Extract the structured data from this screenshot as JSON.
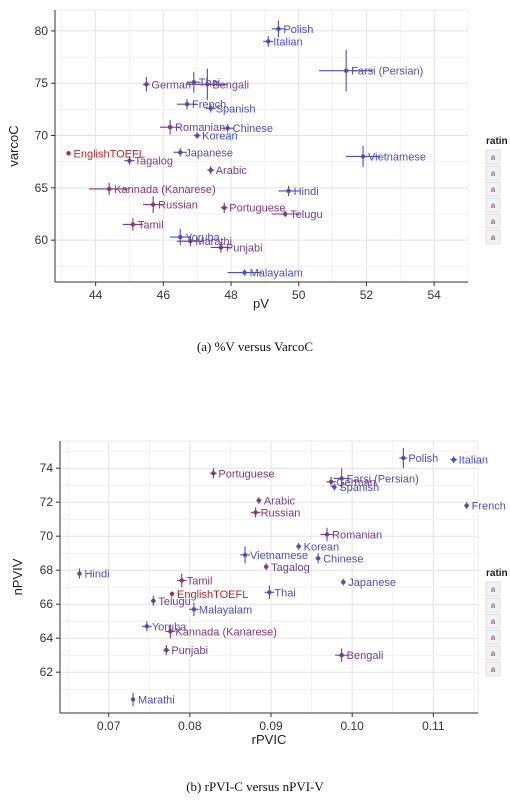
{
  "captions": [
    "(a) %V versus VarcoC",
    "(b) rPVI-C versus nPVI-V"
  ],
  "legend": {
    "title": "ratin",
    "glyph": "a",
    "colors": [
      "#4a4ec9",
      "#5b4aae",
      "#6f3f93",
      "#873878",
      "#9c2f5c",
      "#b52a2a"
    ]
  },
  "chart_data": [
    {
      "type": "scatter",
      "xlabel": "pV",
      "ylabel": "varcoC",
      "xlim": [
        42.8,
        55
      ],
      "ylim": [
        56,
        82
      ],
      "xticks": [
        44,
        46,
        48,
        50,
        52,
        54
      ],
      "yticks": [
        60,
        65,
        70,
        75,
        80
      ],
      "grid": true,
      "points": [
        {
          "label": "Polish",
          "x": 49.4,
          "y": 80.2,
          "ex": 0.2,
          "ey": 0.8,
          "c": 0
        },
        {
          "label": "Italian",
          "x": 49.1,
          "y": 79.0,
          "ex": 0.15,
          "ey": 0.5,
          "c": 0
        },
        {
          "label": "Farsi (Persian)",
          "x": 51.4,
          "y": 76.2,
          "ex": 0.8,
          "ey": 2.0,
          "c": 1
        },
        {
          "label": "German",
          "x": 45.5,
          "y": 74.9,
          "ex": 0.1,
          "ey": 0.7,
          "c": 2
        },
        {
          "label": "Thai",
          "x": 46.9,
          "y": 75.1,
          "ex": 0.2,
          "ey": 1.0,
          "c": 1
        },
        {
          "label": "Bengali",
          "x": 47.3,
          "y": 74.9,
          "ex": 0.6,
          "ey": 1.5,
          "c": 2
        },
        {
          "label": "French",
          "x": 46.7,
          "y": 73.0,
          "ex": 0.3,
          "ey": 0.5,
          "c": 1
        },
        {
          "label": "Spanish",
          "x": 47.4,
          "y": 72.6,
          "ex": 0.15,
          "ey": 0.4,
          "c": 0
        },
        {
          "label": "Romanian",
          "x": 46.2,
          "y": 70.8,
          "ex": 0.3,
          "ey": 0.7,
          "c": 2
        },
        {
          "label": "Chinese",
          "x": 47.9,
          "y": 70.7,
          "ex": 0.2,
          "ey": 0.4,
          "c": 1
        },
        {
          "label": "Korean",
          "x": 47.0,
          "y": 70.0,
          "ex": 0.1,
          "ey": 0.3,
          "c": 0
        },
        {
          "label": "EnglishTOEFL",
          "x": 43.2,
          "y": 68.3,
          "ex": 0.05,
          "ey": 0.2,
          "c": 5
        },
        {
          "label": "Tagalog",
          "x": 45.0,
          "y": 67.6,
          "ex": 0.15,
          "ey": 0.4,
          "c": 2
        },
        {
          "label": "Japanese",
          "x": 46.5,
          "y": 68.4,
          "ex": 0.2,
          "ey": 0.4,
          "c": 1
        },
        {
          "label": "Vietnamese",
          "x": 51.9,
          "y": 68.0,
          "ex": 0.5,
          "ey": 1.0,
          "c": 0
        },
        {
          "label": "Arabic",
          "x": 47.4,
          "y": 66.7,
          "ex": 0.1,
          "ey": 0.4,
          "c": 2
        },
        {
          "label": "Kannada (Kanarese)",
          "x": 44.4,
          "y": 64.9,
          "ex": 0.6,
          "ey": 0.6,
          "c": 3
        },
        {
          "label": "Hindi",
          "x": 49.7,
          "y": 64.7,
          "ex": 0.3,
          "ey": 0.5,
          "c": 1
        },
        {
          "label": "Russian",
          "x": 45.7,
          "y": 63.4,
          "ex": 0.3,
          "ey": 0.8,
          "c": 3
        },
        {
          "label": "Portuguese",
          "x": 47.8,
          "y": 63.1,
          "ex": 0.1,
          "ey": 0.5,
          "c": 3
        },
        {
          "label": "Telugu",
          "x": 49.6,
          "y": 62.5,
          "ex": 0.4,
          "ey": 0.3,
          "c": 2
        },
        {
          "label": "Tamil",
          "x": 45.1,
          "y": 61.5,
          "ex": 0.3,
          "ey": 0.6,
          "c": 3
        },
        {
          "label": "Yoruba",
          "x": 46.5,
          "y": 60.3,
          "ex": 0.3,
          "ey": 0.8,
          "c": 0
        },
        {
          "label": "Marathi",
          "x": 46.8,
          "y": 59.9,
          "ex": 0.4,
          "ey": 0.5,
          "c": 2
        },
        {
          "label": "Punjabi",
          "x": 47.7,
          "y": 59.3,
          "ex": 0.3,
          "ey": 0.5,
          "c": 2
        },
        {
          "label": "Malayalam",
          "x": 48.4,
          "y": 56.9,
          "ex": 0.5,
          "ey": 0.3,
          "c": 0
        }
      ]
    },
    {
      "type": "scatter",
      "xlabel": "rPVIC",
      "ylabel": "nPVIV",
      "xlim": [
        0.064,
        0.1155
      ],
      "ylim": [
        59.6,
        75.6
      ],
      "xticks": [
        0.07,
        0.08,
        0.09,
        0.1,
        0.11
      ],
      "yticks": [
        62,
        64,
        66,
        68,
        70,
        72,
        74
      ],
      "grid": true,
      "points": [
        {
          "label": "Polish",
          "x": 0.1063,
          "y": 74.6,
          "ex": 0.0005,
          "ey": 0.6,
          "c": 0
        },
        {
          "label": "Italian",
          "x": 0.1125,
          "y": 74.5,
          "ex": 0.0004,
          "ey": 0.2,
          "c": 0
        },
        {
          "label": "Portuguese",
          "x": 0.0829,
          "y": 73.7,
          "ex": 0.0004,
          "ey": 0.3,
          "c": 3
        },
        {
          "label": "Farsi (Persian)",
          "x": 0.0987,
          "y": 73.4,
          "ex": 0.001,
          "ey": 0.6,
          "c": 1
        },
        {
          "label": "German",
          "x": 0.0974,
          "y": 73.2,
          "ex": 0.0006,
          "ey": 0.3,
          "c": 2
        },
        {
          "label": "Spanish",
          "x": 0.0978,
          "y": 72.9,
          "ex": 0.0003,
          "ey": 0.2,
          "c": 0
        },
        {
          "label": "French",
          "x": 0.1141,
          "y": 71.8,
          "ex": 0.0003,
          "ey": 0.2,
          "c": 1
        },
        {
          "label": "Arabic",
          "x": 0.0885,
          "y": 72.1,
          "ex": 0.0003,
          "ey": 0.2,
          "c": 2
        },
        {
          "label": "Russian",
          "x": 0.0881,
          "y": 71.4,
          "ex": 0.0006,
          "ey": 0.3,
          "c": 3
        },
        {
          "label": "Romanian",
          "x": 0.0969,
          "y": 70.1,
          "ex": 0.0008,
          "ey": 0.4,
          "c": 2
        },
        {
          "label": "Korean",
          "x": 0.0934,
          "y": 69.4,
          "ex": 0.0003,
          "ey": 0.2,
          "c": 0
        },
        {
          "label": "Vietnamese",
          "x": 0.0868,
          "y": 68.9,
          "ex": 0.0006,
          "ey": 0.5,
          "c": 0
        },
        {
          "label": "Chinese",
          "x": 0.0958,
          "y": 68.7,
          "ex": 0.0003,
          "ey": 0.3,
          "c": 1
        },
        {
          "label": "Tagalog",
          "x": 0.0894,
          "y": 68.2,
          "ex": 0.0003,
          "ey": 0.2,
          "c": 2
        },
        {
          "label": "Hindi",
          "x": 0.0664,
          "y": 67.8,
          "ex": 0.0002,
          "ey": 0.3,
          "c": 1
        },
        {
          "label": "Japanese",
          "x": 0.0989,
          "y": 67.3,
          "ex": 0.0003,
          "ey": 0.2,
          "c": 1
        },
        {
          "label": "Tamil",
          "x": 0.079,
          "y": 67.4,
          "ex": 0.0006,
          "ey": 0.4,
          "c": 3
        },
        {
          "label": "Thai",
          "x": 0.0898,
          "y": 66.7,
          "ex": 0.0006,
          "ey": 0.4,
          "c": 1
        },
        {
          "label": "EnglishTOEFL",
          "x": 0.0778,
          "y": 66.6,
          "ex": 0.0002,
          "ey": 0.15,
          "c": 5
        },
        {
          "label": "Telugu",
          "x": 0.0755,
          "y": 66.2,
          "ex": 0.0003,
          "ey": 0.3,
          "c": 2
        },
        {
          "label": "Malayalam",
          "x": 0.0805,
          "y": 65.7,
          "ex": 0.0006,
          "ey": 0.4,
          "c": 0
        },
        {
          "label": "Yoruba",
          "x": 0.0747,
          "y": 64.7,
          "ex": 0.0006,
          "ey": 0.3,
          "c": 0
        },
        {
          "label": "Kannada (Kanarese)",
          "x": 0.0776,
          "y": 64.4,
          "ex": 0.0006,
          "ey": 0.4,
          "c": 3
        },
        {
          "label": "Punjabi",
          "x": 0.0771,
          "y": 63.3,
          "ex": 0.0004,
          "ey": 0.3,
          "c": 2
        },
        {
          "label": "Bengali",
          "x": 0.0987,
          "y": 63.0,
          "ex": 0.0008,
          "ey": 0.4,
          "c": 2
        },
        {
          "label": "Marathi",
          "x": 0.073,
          "y": 60.4,
          "ex": 0.0002,
          "ey": 0.4,
          "c": 1
        }
      ]
    }
  ]
}
